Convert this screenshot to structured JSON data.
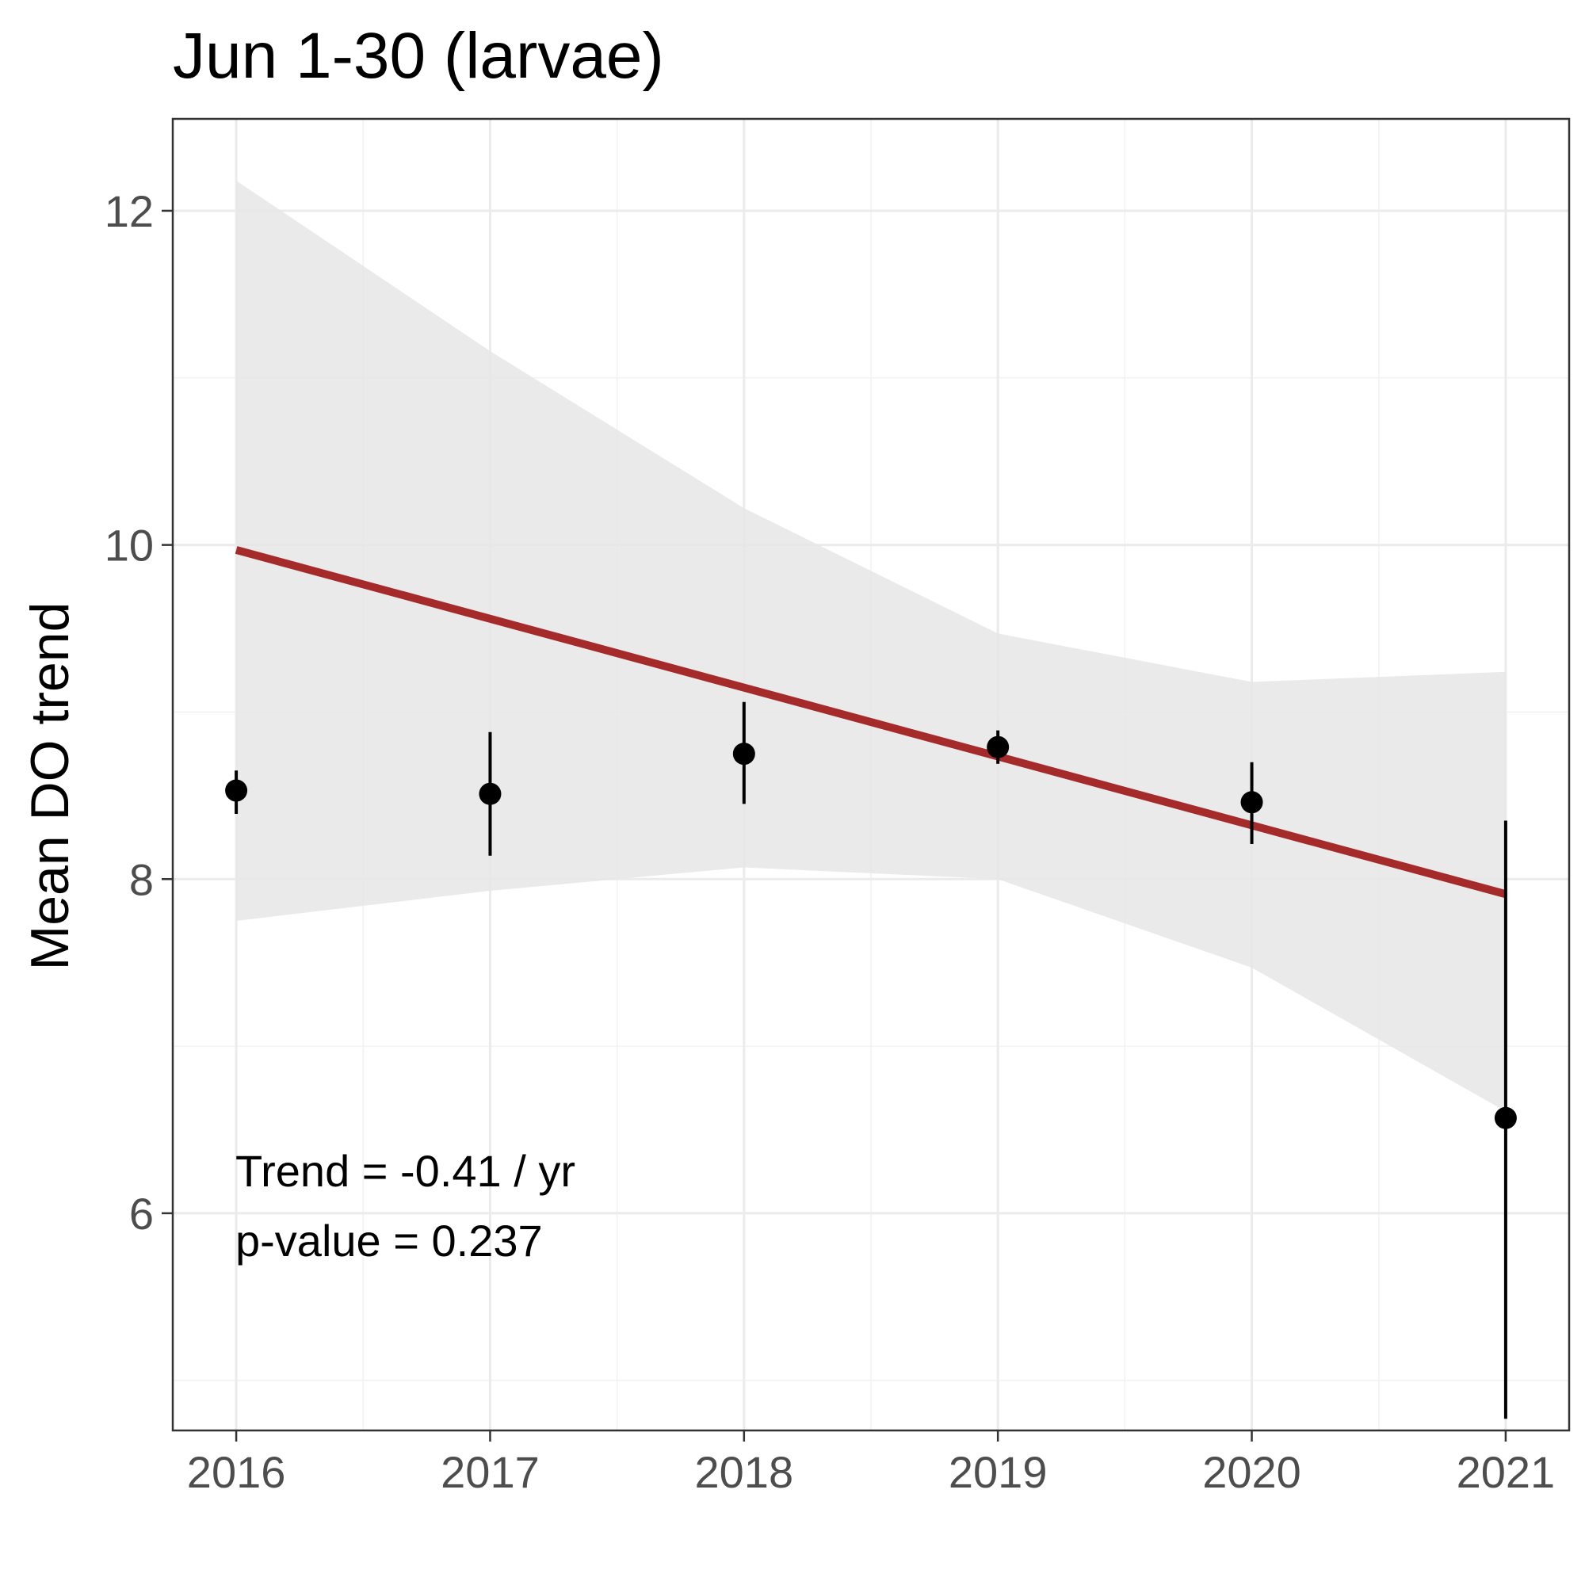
{
  "chart_data": {
    "type": "scatter",
    "title": "Jun 1-30 (larvae)",
    "xlabel": "",
    "ylabel": "Mean DO trend",
    "xlim": [
      2015.75,
      2021.25
    ],
    "ylim": [
      4.7,
      12.55
    ],
    "x_ticks": [
      2016,
      2017,
      2018,
      2019,
      2020,
      2021
    ],
    "x_tick_labels": [
      "2016",
      "2017",
      "2018",
      "2019",
      "2020",
      "2021"
    ],
    "y_ticks": [
      6,
      8,
      10,
      12
    ],
    "y_tick_labels": [
      "6",
      "8",
      "10",
      "12"
    ],
    "grid": true,
    "points": [
      {
        "x": 2016,
        "y": 8.53,
        "ymin": 8.39,
        "ymax": 8.65
      },
      {
        "x": 2017,
        "y": 8.51,
        "ymin": 8.14,
        "ymax": 8.88
      },
      {
        "x": 2018,
        "y": 8.75,
        "ymin": 8.45,
        "ymax": 9.06
      },
      {
        "x": 2019,
        "y": 8.79,
        "ymin": 8.69,
        "ymax": 8.89
      },
      {
        "x": 2020,
        "y": 8.46,
        "ymin": 8.21,
        "ymax": 8.7
      },
      {
        "x": 2021,
        "y": 6.57,
        "ymin": 4.77,
        "ymax": 8.35
      }
    ],
    "trend_line": {
      "x": [
        2016,
        2021
      ],
      "y": [
        9.97,
        7.91
      ],
      "color": "#a52a2a"
    },
    "confidence_band": {
      "x": [
        2016,
        2017,
        2018,
        2019,
        2020,
        2021
      ],
      "upper": [
        12.18,
        11.16,
        10.22,
        9.47,
        9.18,
        9.24
      ],
      "lower": [
        7.75,
        7.93,
        8.07,
        8.0,
        7.47,
        6.61
      ],
      "color": "#e6e6e6"
    },
    "annotations": [
      "Trend = -0.41 / yr",
      "p-value = 0.237"
    ]
  }
}
